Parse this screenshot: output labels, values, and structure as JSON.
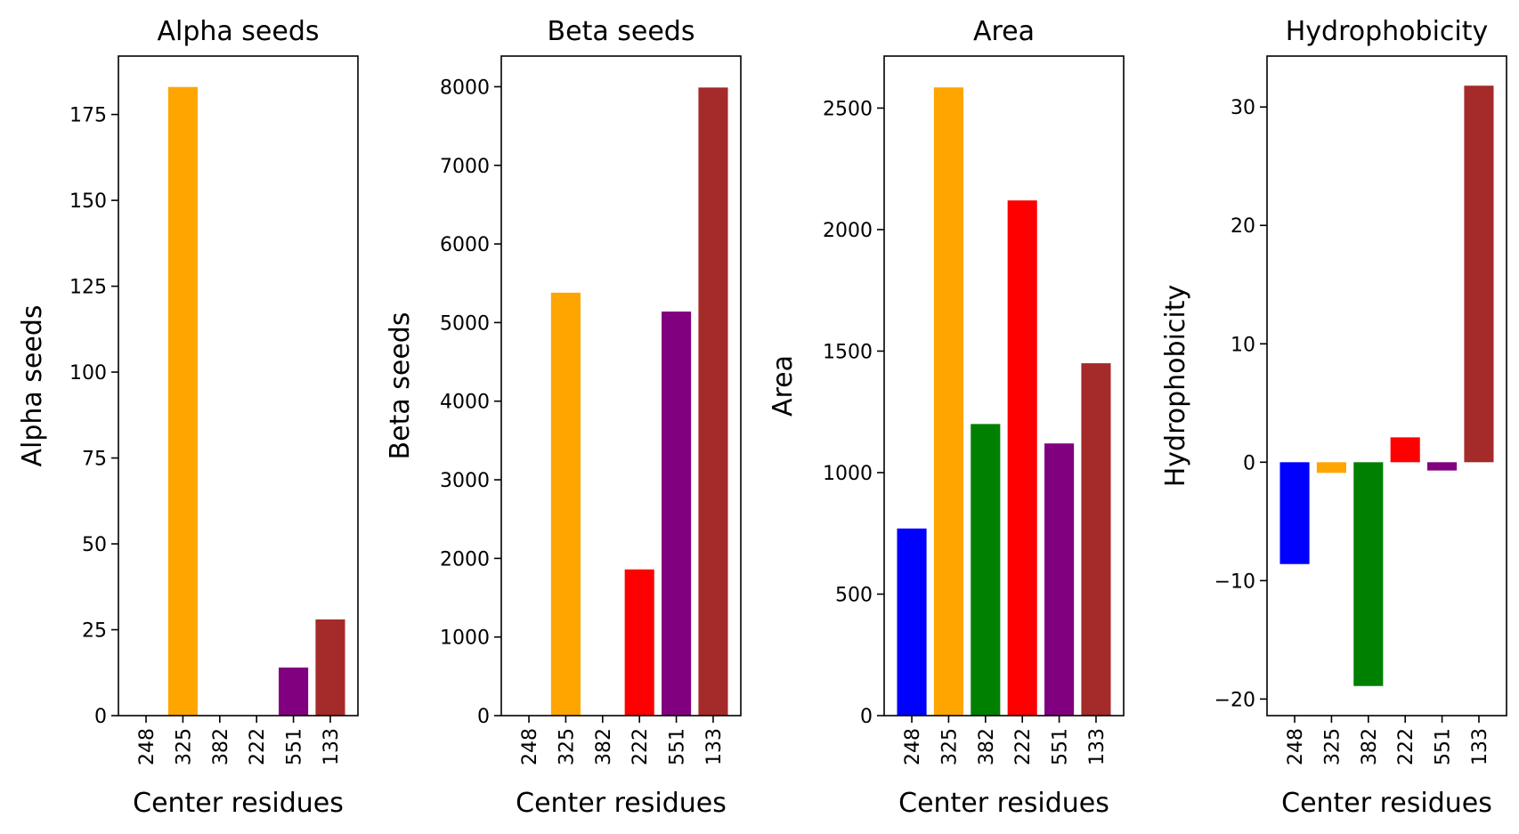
{
  "figure": {
    "background": "#ffffff",
    "bar_colors": [
      "#0000ff",
      "#ffa500",
      "#008000",
      "#ff0000",
      "#800080",
      "#a52a2a"
    ]
  },
  "chart_data": [
    {
      "type": "bar",
      "title": "Alpha seeds",
      "xlabel": "Center residues",
      "ylabel": "Alpha seeds",
      "categories": [
        "248",
        "325",
        "382",
        "222",
        "551",
        "133"
      ],
      "values": [
        0,
        183,
        0,
        0,
        14,
        28
      ],
      "ylim": [
        0,
        192
      ],
      "yticks": [
        0,
        25,
        50,
        75,
        100,
        125,
        150,
        175
      ],
      "grid": false,
      "legend": "none"
    },
    {
      "type": "bar",
      "title": "Beta seeds",
      "xlabel": "Center residues",
      "ylabel": "Beta seeds",
      "categories": [
        "248",
        "325",
        "382",
        "222",
        "551",
        "133"
      ],
      "values": [
        0,
        5380,
        0,
        1860,
        5140,
        7990
      ],
      "ylim": [
        0,
        8390
      ],
      "yticks": [
        0,
        1000,
        2000,
        3000,
        4000,
        5000,
        6000,
        7000,
        8000
      ],
      "grid": false,
      "legend": "none"
    },
    {
      "type": "bar",
      "title": "Area",
      "xlabel": "Center residues",
      "ylabel": "Area",
      "categories": [
        "248",
        "325",
        "382",
        "222",
        "551",
        "133"
      ],
      "values": [
        770,
        2585,
        1200,
        2120,
        1120,
        1450
      ],
      "ylim": [
        0,
        2714
      ],
      "yticks": [
        0,
        500,
        1000,
        1500,
        2000,
        2500
      ],
      "grid": false,
      "legend": "none"
    },
    {
      "type": "bar",
      "title": "Hydrophobicity",
      "xlabel": "Center residues",
      "ylabel": "Hydrophobicity",
      "categories": [
        "248",
        "325",
        "382",
        "222",
        "551",
        "133"
      ],
      "values": [
        -8.6,
        -0.9,
        -18.9,
        2.1,
        -0.7,
        31.8
      ],
      "ylim": [
        -21.4,
        34.3
      ],
      "yticks": [
        -20,
        -10,
        0,
        10,
        20,
        30
      ],
      "grid": false,
      "legend": "none"
    }
  ]
}
